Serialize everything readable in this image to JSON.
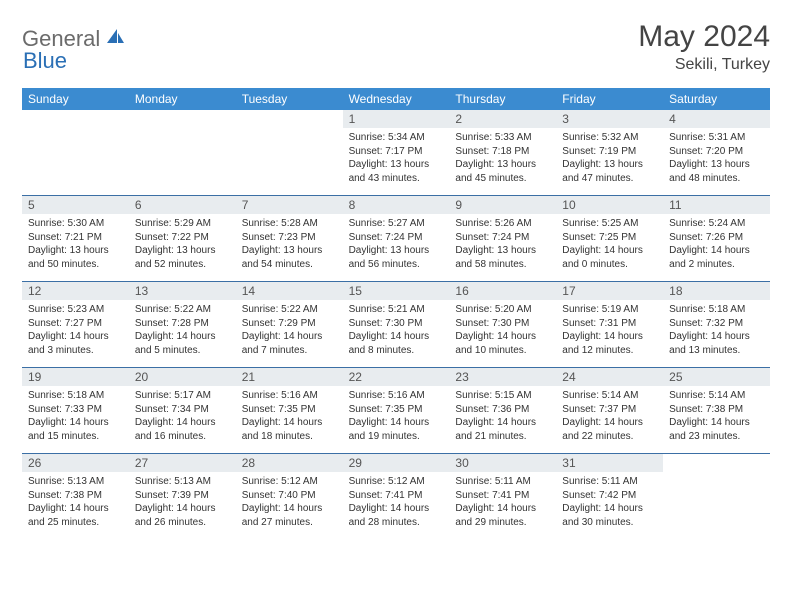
{
  "logo": {
    "general": "General",
    "blue": "Blue"
  },
  "title": "May 2024",
  "location": "Sekili, Turkey",
  "weekdays": [
    "Sunday",
    "Monday",
    "Tuesday",
    "Wednesday",
    "Thursday",
    "Friday",
    "Saturday"
  ],
  "colors": {
    "header_bg": "#3b8bd0",
    "header_text": "#ffffff",
    "daynum_bg": "#e8ecef",
    "border": "#3b6fa5",
    "title": "#444444",
    "body_text": "#333333",
    "logo_gray": "#6b6b6b",
    "logo_blue": "#2a6fb5"
  },
  "weeks": [
    [
      {
        "n": "",
        "empty": true
      },
      {
        "n": "",
        "empty": true
      },
      {
        "n": "",
        "empty": true
      },
      {
        "n": "1",
        "sunrise": "Sunrise: 5:34 AM",
        "sunset": "Sunset: 7:17 PM",
        "day1": "Daylight: 13 hours",
        "day2": "and 43 minutes."
      },
      {
        "n": "2",
        "sunrise": "Sunrise: 5:33 AM",
        "sunset": "Sunset: 7:18 PM",
        "day1": "Daylight: 13 hours",
        "day2": "and 45 minutes."
      },
      {
        "n": "3",
        "sunrise": "Sunrise: 5:32 AM",
        "sunset": "Sunset: 7:19 PM",
        "day1": "Daylight: 13 hours",
        "day2": "and 47 minutes."
      },
      {
        "n": "4",
        "sunrise": "Sunrise: 5:31 AM",
        "sunset": "Sunset: 7:20 PM",
        "day1": "Daylight: 13 hours",
        "day2": "and 48 minutes."
      }
    ],
    [
      {
        "n": "5",
        "sunrise": "Sunrise: 5:30 AM",
        "sunset": "Sunset: 7:21 PM",
        "day1": "Daylight: 13 hours",
        "day2": "and 50 minutes."
      },
      {
        "n": "6",
        "sunrise": "Sunrise: 5:29 AM",
        "sunset": "Sunset: 7:22 PM",
        "day1": "Daylight: 13 hours",
        "day2": "and 52 minutes."
      },
      {
        "n": "7",
        "sunrise": "Sunrise: 5:28 AM",
        "sunset": "Sunset: 7:23 PM",
        "day1": "Daylight: 13 hours",
        "day2": "and 54 minutes."
      },
      {
        "n": "8",
        "sunrise": "Sunrise: 5:27 AM",
        "sunset": "Sunset: 7:24 PM",
        "day1": "Daylight: 13 hours",
        "day2": "and 56 minutes."
      },
      {
        "n": "9",
        "sunrise": "Sunrise: 5:26 AM",
        "sunset": "Sunset: 7:24 PM",
        "day1": "Daylight: 13 hours",
        "day2": "and 58 minutes."
      },
      {
        "n": "10",
        "sunrise": "Sunrise: 5:25 AM",
        "sunset": "Sunset: 7:25 PM",
        "day1": "Daylight: 14 hours",
        "day2": "and 0 minutes."
      },
      {
        "n": "11",
        "sunrise": "Sunrise: 5:24 AM",
        "sunset": "Sunset: 7:26 PM",
        "day1": "Daylight: 14 hours",
        "day2": "and 2 minutes."
      }
    ],
    [
      {
        "n": "12",
        "sunrise": "Sunrise: 5:23 AM",
        "sunset": "Sunset: 7:27 PM",
        "day1": "Daylight: 14 hours",
        "day2": "and 3 minutes."
      },
      {
        "n": "13",
        "sunrise": "Sunrise: 5:22 AM",
        "sunset": "Sunset: 7:28 PM",
        "day1": "Daylight: 14 hours",
        "day2": "and 5 minutes."
      },
      {
        "n": "14",
        "sunrise": "Sunrise: 5:22 AM",
        "sunset": "Sunset: 7:29 PM",
        "day1": "Daylight: 14 hours",
        "day2": "and 7 minutes."
      },
      {
        "n": "15",
        "sunrise": "Sunrise: 5:21 AM",
        "sunset": "Sunset: 7:30 PM",
        "day1": "Daylight: 14 hours",
        "day2": "and 8 minutes."
      },
      {
        "n": "16",
        "sunrise": "Sunrise: 5:20 AM",
        "sunset": "Sunset: 7:30 PM",
        "day1": "Daylight: 14 hours",
        "day2": "and 10 minutes."
      },
      {
        "n": "17",
        "sunrise": "Sunrise: 5:19 AM",
        "sunset": "Sunset: 7:31 PM",
        "day1": "Daylight: 14 hours",
        "day2": "and 12 minutes."
      },
      {
        "n": "18",
        "sunrise": "Sunrise: 5:18 AM",
        "sunset": "Sunset: 7:32 PM",
        "day1": "Daylight: 14 hours",
        "day2": "and 13 minutes."
      }
    ],
    [
      {
        "n": "19",
        "sunrise": "Sunrise: 5:18 AM",
        "sunset": "Sunset: 7:33 PM",
        "day1": "Daylight: 14 hours",
        "day2": "and 15 minutes."
      },
      {
        "n": "20",
        "sunrise": "Sunrise: 5:17 AM",
        "sunset": "Sunset: 7:34 PM",
        "day1": "Daylight: 14 hours",
        "day2": "and 16 minutes."
      },
      {
        "n": "21",
        "sunrise": "Sunrise: 5:16 AM",
        "sunset": "Sunset: 7:35 PM",
        "day1": "Daylight: 14 hours",
        "day2": "and 18 minutes."
      },
      {
        "n": "22",
        "sunrise": "Sunrise: 5:16 AM",
        "sunset": "Sunset: 7:35 PM",
        "day1": "Daylight: 14 hours",
        "day2": "and 19 minutes."
      },
      {
        "n": "23",
        "sunrise": "Sunrise: 5:15 AM",
        "sunset": "Sunset: 7:36 PM",
        "day1": "Daylight: 14 hours",
        "day2": "and 21 minutes."
      },
      {
        "n": "24",
        "sunrise": "Sunrise: 5:14 AM",
        "sunset": "Sunset: 7:37 PM",
        "day1": "Daylight: 14 hours",
        "day2": "and 22 minutes."
      },
      {
        "n": "25",
        "sunrise": "Sunrise: 5:14 AM",
        "sunset": "Sunset: 7:38 PM",
        "day1": "Daylight: 14 hours",
        "day2": "and 23 minutes."
      }
    ],
    [
      {
        "n": "26",
        "sunrise": "Sunrise: 5:13 AM",
        "sunset": "Sunset: 7:38 PM",
        "day1": "Daylight: 14 hours",
        "day2": "and 25 minutes."
      },
      {
        "n": "27",
        "sunrise": "Sunrise: 5:13 AM",
        "sunset": "Sunset: 7:39 PM",
        "day1": "Daylight: 14 hours",
        "day2": "and 26 minutes."
      },
      {
        "n": "28",
        "sunrise": "Sunrise: 5:12 AM",
        "sunset": "Sunset: 7:40 PM",
        "day1": "Daylight: 14 hours",
        "day2": "and 27 minutes."
      },
      {
        "n": "29",
        "sunrise": "Sunrise: 5:12 AM",
        "sunset": "Sunset: 7:41 PM",
        "day1": "Daylight: 14 hours",
        "day2": "and 28 minutes."
      },
      {
        "n": "30",
        "sunrise": "Sunrise: 5:11 AM",
        "sunset": "Sunset: 7:41 PM",
        "day1": "Daylight: 14 hours",
        "day2": "and 29 minutes."
      },
      {
        "n": "31",
        "sunrise": "Sunrise: 5:11 AM",
        "sunset": "Sunset: 7:42 PM",
        "day1": "Daylight: 14 hours",
        "day2": "and 30 minutes."
      },
      {
        "n": "",
        "empty": true
      }
    ]
  ]
}
